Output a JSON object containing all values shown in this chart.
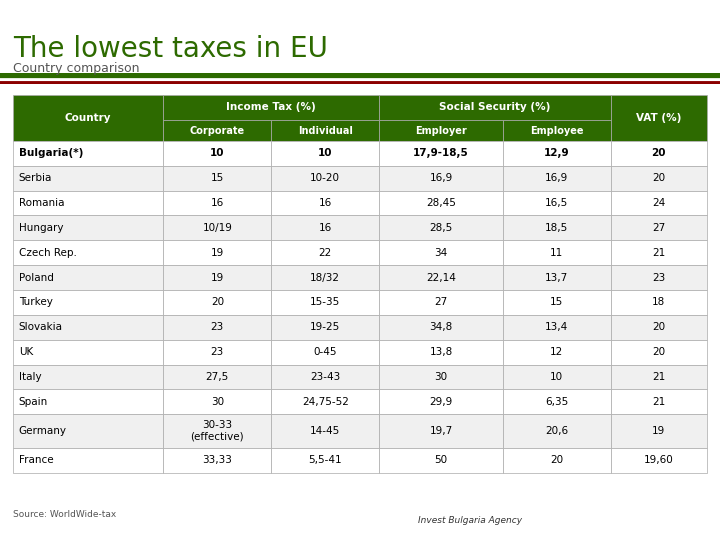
{
  "title": "The lowest taxes in EU",
  "subtitle": "Country comparison",
  "title_color": "#2d6a00",
  "subtitle_color": "#555555",
  "source_text": "Source: WorldWide-tax",
  "header_bg": "#2d6a00",
  "header_text_color": "#ffffff",
  "row_even_color": "#ffffff",
  "row_odd_color": "#f0f0f0",
  "border_color": "#aaaaaa",
  "dark_red": "#8b0000",
  "dark_green": "#2d6a00",
  "rows": [
    [
      "Bulgaria(*)",
      "10",
      "10",
      "17,9-18,5",
      "12,9",
      "20",
      true
    ],
    [
      "Serbia",
      "15",
      "10-20",
      "16,9",
      "16,9",
      "20",
      false
    ],
    [
      "Romania",
      "16",
      "16",
      "28,45",
      "16,5",
      "24",
      false
    ],
    [
      "Hungary",
      "10/19",
      "16",
      "28,5",
      "18,5",
      "27",
      false
    ],
    [
      "Czech Rep.",
      "19",
      "22",
      "34",
      "11",
      "21",
      false
    ],
    [
      "Poland",
      "19",
      "18/32",
      "22,14",
      "13,7",
      "23",
      false
    ],
    [
      "Turkey",
      "20",
      "15-35",
      "27",
      "15",
      "18",
      false
    ],
    [
      "Slovakia",
      "23",
      "19-25",
      "34,8",
      "13,4",
      "20",
      false
    ],
    [
      "UK",
      "23",
      "0-45",
      "13,8",
      "12",
      "20",
      false
    ],
    [
      "Italy",
      "27,5",
      "23-43",
      "30",
      "10",
      "21",
      false
    ],
    [
      "Spain",
      "30",
      "24,75-52",
      "29,9",
      "6,35",
      "21",
      false
    ],
    [
      "Germany",
      "30-33\n(effective)",
      "14-45",
      "19,7",
      "20,6",
      "19",
      false
    ],
    [
      "France",
      "33,33",
      "5,5-41",
      "50",
      "20",
      "19,60",
      false
    ]
  ]
}
